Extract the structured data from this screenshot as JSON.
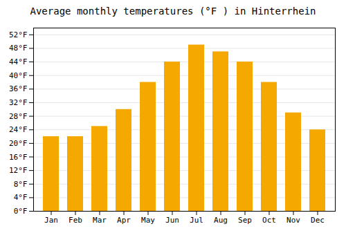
{
  "chart_data": {
    "type": "bar",
    "title": "Average monthly temperatures (°F ) in Hinterrhein",
    "categories": [
      "Jan",
      "Feb",
      "Mar",
      "Apr",
      "May",
      "Jun",
      "Jul",
      "Aug",
      "Sep",
      "Oct",
      "Nov",
      "Dec"
    ],
    "values": [
      22,
      22,
      25,
      30,
      38,
      44,
      49,
      47,
      44,
      38,
      29,
      24
    ],
    "color": "#F5A800",
    "ylim": [
      0,
      54
    ],
    "yticks": [
      {
        "value": 0,
        "label": "0°F"
      },
      {
        "value": 4,
        "label": "4°F"
      },
      {
        "value": 8,
        "label": "8°F"
      },
      {
        "value": 12,
        "label": "12°F"
      },
      {
        "value": 16,
        "label": "16°F"
      },
      {
        "value": 20,
        "label": "20°F"
      },
      {
        "value": 24,
        "label": "24°F"
      },
      {
        "value": 28,
        "label": "28°F"
      },
      {
        "value": 32,
        "label": "32°F"
      },
      {
        "value": 36,
        "label": "36°F"
      },
      {
        "value": 40,
        "label": "40°F"
      },
      {
        "value": 44,
        "label": "44°F"
      },
      {
        "value": 48,
        "label": "48°F"
      },
      {
        "value": 52,
        "label": "52°F"
      }
    ],
    "grid": true
  }
}
